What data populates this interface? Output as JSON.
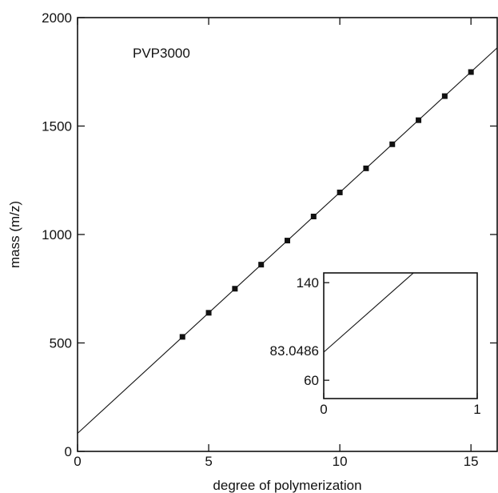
{
  "chart_data": [
    {
      "type": "scatter",
      "title": "",
      "annotation": "PVP3000",
      "xlabel": "degree of polymerization",
      "ylabel": "mass (m/z)",
      "xlim": [
        0,
        16
      ],
      "ylim": [
        0,
        2000
      ],
      "xticks": [
        0,
        5,
        10,
        15
      ],
      "yticks": [
        0,
        500,
        1000,
        1500,
        2000
      ],
      "grid": false,
      "series": [
        {
          "x": [
            4,
            5,
            6,
            7,
            8,
            9,
            10,
            11,
            12,
            13,
            14,
            15
          ],
          "y": [
            528,
            639,
            750,
            861,
            972,
            1083,
            1194,
            1305,
            1416,
            1527,
            1638,
            1749
          ]
        }
      ],
      "fit_line": {
        "intercept": 83.0486,
        "slope": 111.1
      }
    },
    {
      "type": "line",
      "title": "",
      "xlim": [
        0,
        1
      ],
      "ylim": [
        45,
        148
      ],
      "xticks": [
        0,
        1
      ],
      "yticks": [
        60,
        140
      ],
      "intercept_label": "83.0486",
      "grid": false,
      "fit_line": {
        "intercept": 83.0486,
        "slope": 111.1
      }
    }
  ]
}
